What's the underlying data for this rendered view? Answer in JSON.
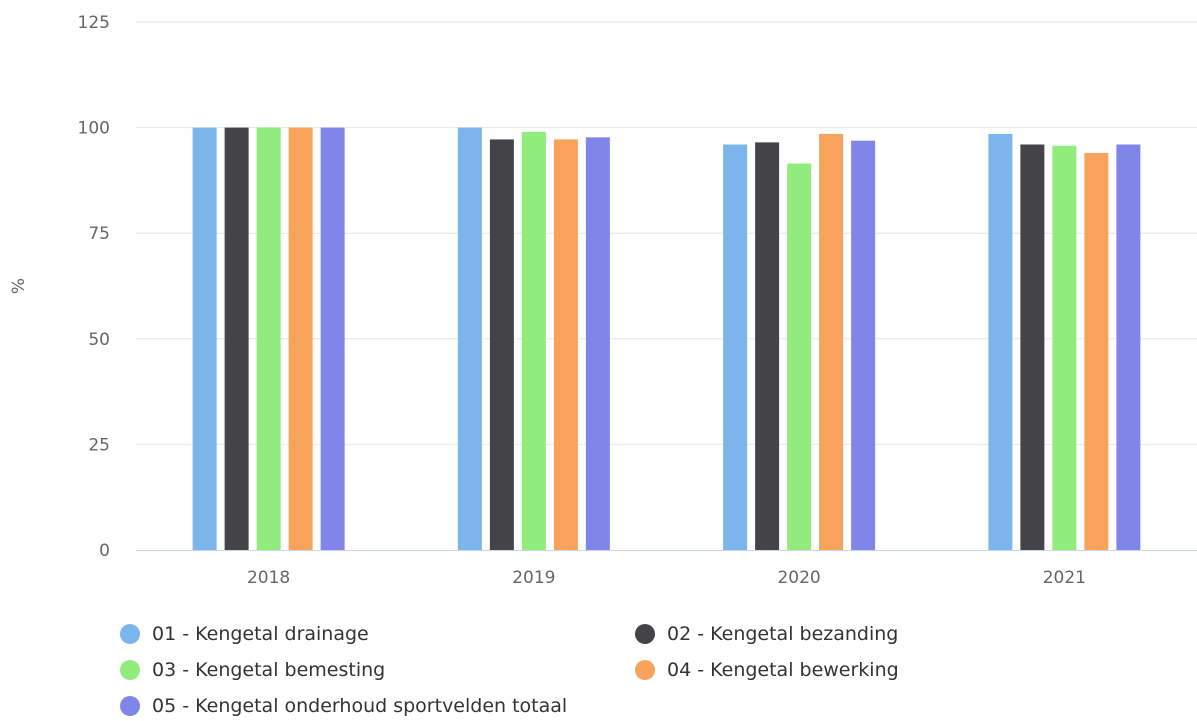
{
  "chart_data": {
    "type": "bar",
    "title": "",
    "xlabel": "",
    "ylabel": "%",
    "ylim": [
      0,
      125
    ],
    "yticks": [
      "0",
      "25",
      "50",
      "75",
      "100",
      "125"
    ],
    "categories": [
      "2018",
      "2019",
      "2020",
      "2021"
    ],
    "grid": true,
    "legend_position": "bottom",
    "series": [
      {
        "name": "01 - Kengetal drainage",
        "color": "#7cb5ec",
        "values": [
          100,
          100,
          96,
          98.5
        ]
      },
      {
        "name": "02 - Kengetal bezanding",
        "color": "#434348",
        "values": [
          100,
          97.2,
          96.5,
          96
        ]
      },
      {
        "name": "03 - Kengetal bemesting",
        "color": "#90ed7d",
        "values": [
          100,
          99,
          91.5,
          95.7
        ]
      },
      {
        "name": "04 - Kengetal bewerking",
        "color": "#f7a35c",
        "values": [
          100,
          97.2,
          98.5,
          94
        ]
      },
      {
        "name": "05 - Kengetal onderhoud sportvelden totaal",
        "color": "#8085e9",
        "values": [
          100,
          97.7,
          96.9,
          96
        ]
      }
    ]
  }
}
